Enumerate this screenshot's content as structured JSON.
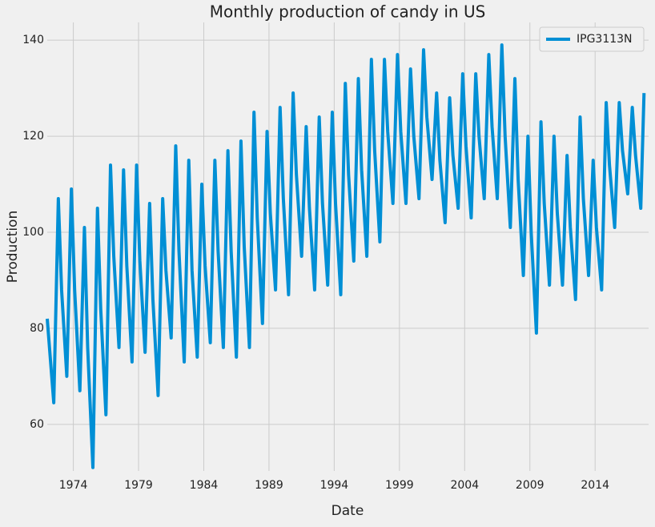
{
  "chart_data": {
    "type": "line",
    "title": "Monthly production of candy in US",
    "xlabel": "Date",
    "ylabel": "Production",
    "x": [
      1972.0,
      1972.5,
      1972.85,
      1973.1,
      1973.5,
      1973.85,
      1974.1,
      1974.5,
      1974.85,
      1975.1,
      1975.5,
      1975.85,
      1976.1,
      1976.5,
      1976.85,
      1977.1,
      1977.5,
      1977.85,
      1978.1,
      1978.5,
      1978.85,
      1979.1,
      1979.5,
      1979.85,
      1980.1,
      1980.5,
      1980.85,
      1981.1,
      1981.5,
      1981.85,
      1982.1,
      1982.5,
      1982.85,
      1983.1,
      1983.5,
      1983.85,
      1984.1,
      1984.5,
      1984.85,
      1985.1,
      1985.5,
      1985.85,
      1986.1,
      1986.5,
      1986.85,
      1987.1,
      1987.5,
      1987.85,
      1988.1,
      1988.5,
      1988.85,
      1989.1,
      1989.5,
      1989.85,
      1990.1,
      1990.5,
      1990.85,
      1991.1,
      1991.5,
      1991.85,
      1992.1,
      1992.5,
      1992.85,
      1993.1,
      1993.5,
      1993.85,
      1994.1,
      1994.5,
      1994.85,
      1995.1,
      1995.5,
      1995.85,
      1996.1,
      1996.5,
      1996.85,
      1997.1,
      1997.5,
      1997.85,
      1998.1,
      1998.5,
      1998.85,
      1999.1,
      1999.5,
      1999.85,
      2000.1,
      2000.5,
      2000.85,
      2001.1,
      2001.5,
      2001.85,
      2002.1,
      2002.5,
      2002.85,
      2003.1,
      2003.5,
      2003.85,
      2004.1,
      2004.5,
      2004.85,
      2005.1,
      2005.5,
      2005.85,
      2006.1,
      2006.5,
      2006.85,
      2007.1,
      2007.5,
      2007.85,
      2008.1,
      2008.5,
      2008.85,
      2009.1,
      2009.5,
      2009.85,
      2010.1,
      2010.5,
      2010.85,
      2011.1,
      2011.5,
      2011.85,
      2012.1,
      2012.5,
      2012.85,
      2013.1,
      2013.5,
      2013.85,
      2014.1,
      2014.5,
      2014.85,
      2015.1,
      2015.5,
      2015.85,
      2016.1,
      2016.5,
      2016.85,
      2017.1,
      2017.5,
      2017.75
    ],
    "series": [
      {
        "name": "IPG3113N",
        "color": "#008fd5",
        "values": [
          82,
          64.5,
          107,
          88,
          70,
          109,
          88,
          67,
          101,
          76,
          51,
          105,
          84,
          62,
          114,
          95,
          76,
          113,
          93,
          73,
          114,
          94,
          75,
          106,
          86,
          66,
          107,
          92,
          78,
          118,
          96,
          73,
          115,
          92,
          74,
          110,
          93,
          77,
          115,
          96,
          76,
          117,
          96,
          74,
          119,
          97,
          76,
          125,
          103,
          81,
          121,
          104,
          88,
          126,
          107,
          87,
          129,
          112,
          95,
          122,
          105,
          88,
          124,
          106,
          89,
          125,
          106,
          87,
          131,
          112,
          94,
          132,
          113,
          95,
          136,
          117,
          98,
          136,
          121,
          106,
          137,
          121,
          106,
          134,
          120,
          107,
          138,
          124,
          111,
          129,
          115,
          102,
          128,
          116,
          105,
          133,
          118,
          103,
          133,
          120,
          107,
          137,
          122,
          107,
          139,
          120,
          101,
          132,
          111,
          91,
          120,
          100,
          79,
          123,
          106,
          89,
          120,
          104,
          89,
          116,
          101,
          86,
          124,
          107,
          91,
          115,
          101,
          88,
          127,
          114,
          101,
          127,
          117,
          108,
          126,
          116,
          105,
          129
        ]
      }
    ],
    "xlim": [
      1972,
      2018.1
    ],
    "ylim": [
      50.3,
      143.7
    ],
    "xticks": [
      1974,
      1979,
      1984,
      1989,
      1994,
      1999,
      2004,
      2009,
      2014
    ],
    "yticks": [
      60,
      80,
      100,
      120,
      140
    ],
    "grid": true,
    "legend": "upper right"
  }
}
